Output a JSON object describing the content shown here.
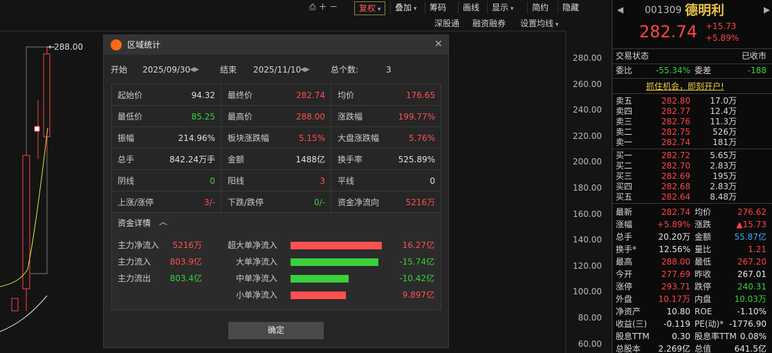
{
  "toolbar": {
    "buttons": [
      "复权",
      "叠加",
      "筹码",
      "画线",
      "显示",
      "简约",
      "隐藏"
    ],
    "sub_buttons": [
      "深股通",
      "融资融券",
      "设置均线"
    ]
  },
  "chart": {
    "max_label": "288.00",
    "axis_labels": [
      "280.00",
      "260.00",
      "240.00",
      "220.00",
      "200.00",
      "180.00",
      "160.00",
      "140.00",
      "120.00",
      "100.00",
      "80.00",
      "60.00"
    ]
  },
  "dialog": {
    "title": "区域统计",
    "start_label": "开始",
    "start_date": "2025/09/30",
    "end_label": "结束",
    "end_date": "2025/11/10",
    "count_label": "总个数:",
    "count": "3",
    "stats": [
      [
        {
          "label": "起始价",
          "value": "94.32",
          "color": "#e0e0e0"
        },
        {
          "label": "最终价",
          "value": "282.74",
          "color": "#ff5050"
        },
        {
          "label": "均价",
          "value": "176.65",
          "color": "#ff5050"
        }
      ],
      [
        {
          "label": "最低价",
          "value": "85.25",
          "color": "#3ad13a"
        },
        {
          "label": "最高价",
          "value": "288.00",
          "color": "#ff5050"
        },
        {
          "label": "涨跌幅",
          "value": "199.77%",
          "color": "#ff5050"
        }
      ],
      [
        {
          "label": "振幅",
          "value": "214.96%",
          "color": "#e0e0e0"
        },
        {
          "label": "板块涨跌幅",
          "value": "5.15%",
          "color": "#ff5050"
        },
        {
          "label": "大盘涨跌幅",
          "value": "5.76%",
          "color": "#ff5050"
        }
      ],
      [
        {
          "label": "总手",
          "value": "842.24万手",
          "color": "#e0e0e0"
        },
        {
          "label": "金额",
          "value": "1488亿",
          "color": "#e0e0e0"
        },
        {
          "label": "换手率",
          "value": "525.89%",
          "color": "#e0e0e0"
        }
      ],
      [
        {
          "label": "阴线",
          "value": "0",
          "color": "#3ad13a"
        },
        {
          "label": "阳线",
          "value": "3",
          "color": "#ff5050"
        },
        {
          "label": "平线",
          "value": "0",
          "color": "#e0e0e0"
        }
      ],
      [
        {
          "label": "上涨/涨停",
          "value": "3/-",
          "color": "#ff5050"
        },
        {
          "label": "下跌/跌停",
          "value": "0/-",
          "color": "#3ad13a"
        },
        {
          "label": "资金净流向",
          "value": "5216万",
          "color": "#ff5050"
        }
      ]
    ],
    "detail_title": "资金详情",
    "flows": [
      {
        "label": "主力净流入",
        "value": "5216万",
        "color": "#ff5050"
      },
      {
        "label": "主力流入",
        "value": "803.9亿",
        "color": "#ff5050"
      },
      {
        "label": "主力流出",
        "value": "803.4亿",
        "color": "#3ad13a"
      }
    ],
    "orders": [
      {
        "label": "超大单净流入",
        "value": "16.27亿",
        "color": "#ff5050"
      },
      {
        "label": "大单净流入",
        "value": "-15.74亿",
        "color": "#3ad13a"
      },
      {
        "label": "中单净流入",
        "value": "-10.42亿",
        "color": "#3ad13a"
      },
      {
        "label": "小单净流入",
        "value": "9.897亿",
        "color": "#ff5050"
      }
    ],
    "ok": "确定"
  },
  "quote": {
    "code": "001309",
    "name": "德明利",
    "price": "282.74",
    "change": "+15.73",
    "change_pct": "+5.89%",
    "status_label": "交易状态",
    "status": "已收市",
    "ratio_label": "委比",
    "ratio": "-55.34%",
    "diff_label": "委差",
    "diff": "-188",
    "ad": "抓住机会，即刻开户!",
    "sells": [
      {
        "label": "卖五",
        "price": "282.80",
        "volume": "17.0万"
      },
      {
        "label": "卖四",
        "price": "282.77",
        "volume": "12.4万"
      },
      {
        "label": "卖三",
        "price": "282.76",
        "volume": "11.3万"
      },
      {
        "label": "卖二",
        "price": "282.75",
        "volume": "526万"
      },
      {
        "label": "卖一",
        "price": "282.74",
        "volume": "181万"
      }
    ],
    "buys": [
      {
        "label": "买一",
        "price": "282.72",
        "volume": "5.65万"
      },
      {
        "label": "买二",
        "price": "282.70",
        "volume": "2.83万"
      },
      {
        "label": "买三",
        "price": "282.69",
        "volume": "195万"
      },
      {
        "label": "买四",
        "price": "282.68",
        "volume": "2.83万"
      },
      {
        "label": "买五",
        "price": "282.64",
        "volume": "8.48万"
      }
    ],
    "rows": [
      [
        {
          "label": "最新",
          "value": "282.74",
          "color": "#ff4444"
        },
        {
          "label": "均价",
          "value": "276.62",
          "color": "#ff4444"
        }
      ],
      [
        {
          "label": "涨幅",
          "value": "+5.89%",
          "color": "#ff4444"
        },
        {
          "label": "涨跌",
          "value": "▲15.73",
          "color": "#ff4444"
        }
      ],
      [
        {
          "label": "总手",
          "value": "20.20万",
          "color": "#e8e8e8"
        },
        {
          "label": "金额",
          "value": "55.87亿",
          "color": "#3fa9ff"
        }
      ],
      [
        {
          "label": "换手*",
          "value": "12.56%",
          "color": "#e8e8e8"
        },
        {
          "label": "量比",
          "value": "1.21",
          "color": "#ff4444"
        }
      ],
      [
        {
          "label": "最高",
          "value": "288.00",
          "color": "#ff4444"
        },
        {
          "label": "最低",
          "value": "267.20",
          "color": "#ff4444"
        }
      ],
      [
        {
          "label": "今开",
          "value": "277.69",
          "color": "#ff4444"
        },
        {
          "label": "昨收",
          "value": "267.01",
          "color": "#e8e8e8"
        }
      ],
      [
        {
          "label": "涨停",
          "value": "293.71",
          "color": "#ff4444"
        },
        {
          "label": "跌停",
          "value": "240.31",
          "color": "#3ad13a"
        }
      ],
      [
        {
          "label": "外盘",
          "value": "10.17万",
          "color": "#ff4444"
        },
        {
          "label": "内盘",
          "value": "10.03万",
          "color": "#3ad13a"
        }
      ],
      [
        {
          "label": "净资产",
          "value": "10.80",
          "color": "#e8e8e8"
        },
        {
          "label": "ROE",
          "value": "-1.10%",
          "color": "#e8e8e8"
        }
      ],
      [
        {
          "label": "收益(三)",
          "value": "-0.119",
          "color": "#e8e8e8"
        },
        {
          "label": "PE(动)*",
          "value": "-1776.90",
          "color": "#e8e8e8"
        }
      ],
      [
        {
          "label": "股息TTM",
          "value": "0.30",
          "color": "#e8e8e8"
        },
        {
          "label": "股息率TTM",
          "value": "0.08%",
          "color": "#e8e8e8"
        }
      ],
      [
        {
          "label": "总股本",
          "value": "2.269亿",
          "color": "#e8e8e8"
        },
        {
          "label": "总值",
          "value": "641.5亿",
          "color": "#e8e8e8"
        }
      ]
    ]
  }
}
